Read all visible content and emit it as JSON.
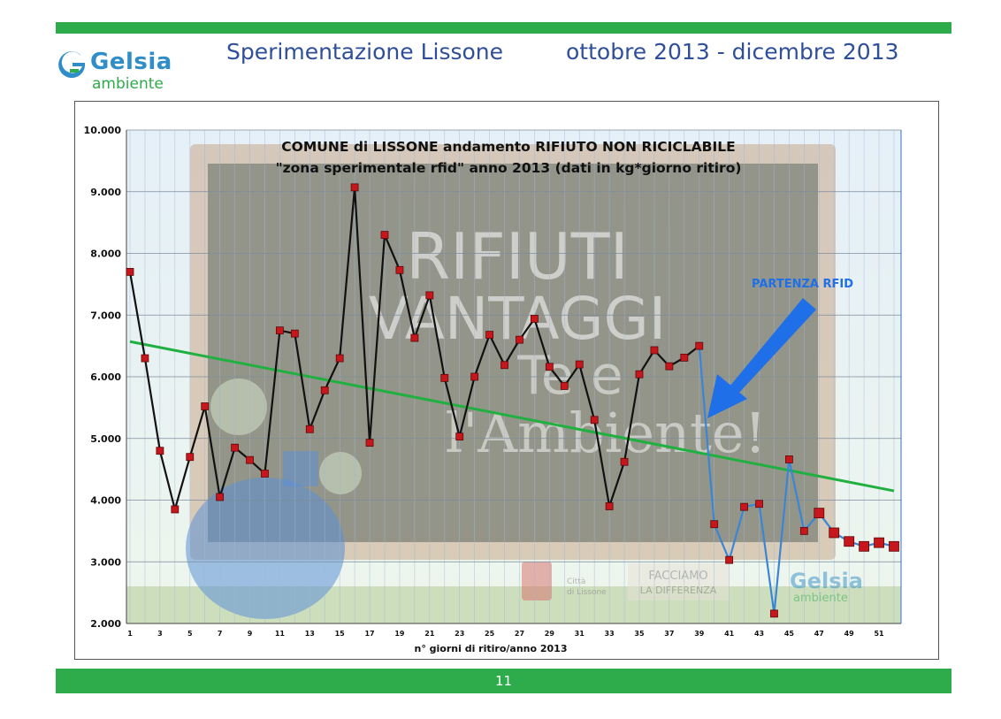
{
  "header": {
    "title": "Sperimentazione Lissone",
    "period": "ottobre 2013 - dicembre 2013"
  },
  "logo": {
    "name": "Gelsia",
    "sub": "ambiente"
  },
  "footer": {
    "page_number": "11"
  },
  "colors": {
    "brand_green": "#2eab4a",
    "brand_blue": "#2f8ec8",
    "title_blue": "#2f4f9a",
    "marker_red": "#c8161d",
    "pre_line": "#111111",
    "post_line": "#3a86d6",
    "trend_green": "#20b040",
    "arrow_blue": "#1f6fe8"
  },
  "background_art": {
    "text_lines": [
      "RIFIUTI",
      "VANTAGGI",
      "Te e",
      "l'Ambiente!"
    ],
    "stamp": "FACCIAMO\nLA DIFFERENZA",
    "city_line1": "Città",
    "city_line2": "di Lissone",
    "logo_name": "Gelsia",
    "logo_sub": "ambiente"
  },
  "chart_data": {
    "type": "line",
    "title": "COMUNE  di LISSONE andamento RIFIUTO NON RICICLABILE",
    "subtitle": "\"zona sperimentale rfid\" anno 2013 (dati in kg*giorno ritiro)",
    "xlabel": "n° giorni di ritiro/anno 2013",
    "ylabel": "",
    "ylim": [
      2000,
      10000
    ],
    "y_ticks": [
      2000,
      3000,
      4000,
      5000,
      6000,
      7000,
      8000,
      9000,
      10000
    ],
    "y_tick_labels": [
      "2.000",
      "3.000",
      "4.000",
      "5.000",
      "6.000",
      "7.000",
      "8.000",
      "9.000",
      "10.000"
    ],
    "x_range": [
      1,
      52
    ],
    "x_tick_labels": [
      "1",
      "3",
      "5",
      "7",
      "9",
      "11",
      "13",
      "15",
      "17",
      "19",
      "21",
      "23",
      "25",
      "27",
      "29",
      "31",
      "33",
      "35",
      "37",
      "39",
      "41",
      "43",
      "45",
      "47",
      "49",
      "51"
    ],
    "grid": true,
    "annotation": "PARTENZA RFID",
    "rfid_start_index": 39,
    "series": [
      {
        "values": [
          7700,
          6300,
          4800,
          3850,
          4700,
          5520,
          4050,
          4850,
          4650,
          4430,
          6750,
          6700,
          5150,
          5780,
          6300,
          9070,
          4930,
          8300,
          7730,
          6630,
          7320,
          5980,
          5030,
          6000,
          6680,
          6190,
          6600,
          6940,
          6160,
          5850,
          6200,
          5300,
          3900,
          4620,
          6040,
          6430,
          6170,
          6310,
          6500,
          3610,
          3030,
          3890,
          3940,
          2160,
          4660,
          3500,
          3790,
          3470,
          3330,
          3250,
          3310,
          3250
        ]
      }
    ],
    "trend": {
      "start": [
        1,
        6570
      ],
      "end": [
        52,
        4150
      ]
    }
  }
}
